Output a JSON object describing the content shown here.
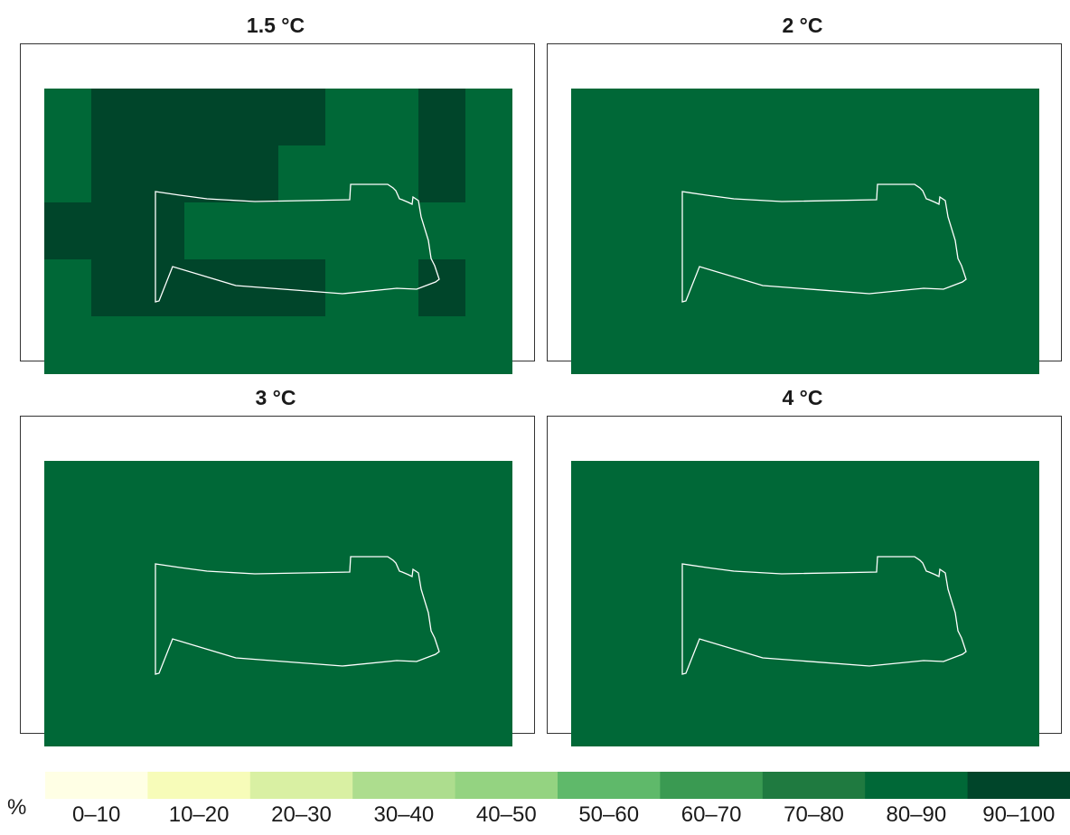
{
  "panels": [
    {
      "title": "1.5 °C"
    },
    {
      "title": "2 °C"
    },
    {
      "title": "3 °C"
    },
    {
      "title": "4 °C"
    }
  ],
  "legend": {
    "unit": "%",
    "bins": [
      {
        "label": "0–10",
        "color": "#ffffe5"
      },
      {
        "label": "10–20",
        "color": "#f7fcb9"
      },
      {
        "label": "20–30",
        "color": "#d9f0a3"
      },
      {
        "label": "30–40",
        "color": "#addd8e"
      },
      {
        "label": "40–50",
        "color": "#94d381"
      },
      {
        "label": "50–60",
        "color": "#5fb96a"
      },
      {
        "label": "60–70",
        "color": "#3a9a52"
      },
      {
        "label": "70–80",
        "color": "#1f7a40"
      },
      {
        "label": "80–90",
        "color": "#006837"
      },
      {
        "label": "90–100",
        "color": "#00452a"
      }
    ]
  },
  "colors": {
    "class_80_90": "#006837",
    "class_90_100": "#00452a",
    "outline": "#ffffff"
  }
}
